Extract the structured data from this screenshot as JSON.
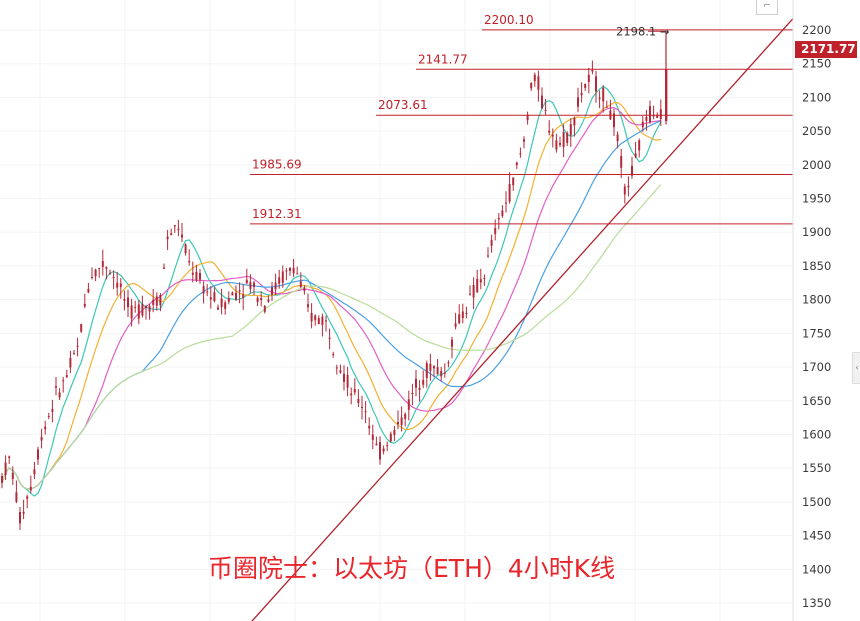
{
  "chart_data": {
    "type": "candlestick",
    "title": "币圈院士：以太坊（ETH）4小时K线",
    "y_axis": {
      "range": [
        1330,
        2230
      ],
      "ticks": [
        2200,
        2150,
        2100,
        2050,
        2000,
        1950,
        1900,
        1850,
        1800,
        1750,
        1700,
        1650,
        1600,
        1550,
        1500,
        1450,
        1400,
        1350
      ],
      "position": "right"
    },
    "current_price": {
      "value": 2171.77,
      "label": "2171.77",
      "color": "#c0202a"
    },
    "horizontal_levels": [
      {
        "value": 2200.1,
        "label": "2200.10",
        "color": "#c0202a"
      },
      {
        "value": 2141.77,
        "label": "2141.77",
        "color": "#c0202a"
      },
      {
        "value": 2073.61,
        "label": "2073.61",
        "color": "#c0202a"
      },
      {
        "value": 1985.69,
        "label": "1985.69",
        "color": "#c0202a"
      },
      {
        "value": 1912.31,
        "label": "1912.31",
        "color": "#c0202a"
      }
    ],
    "peak_annotation": {
      "value": 2198.1,
      "label": "2198.1 →"
    },
    "candle_color": "#b22a3a",
    "moving_average_colors": {
      "ma_fast": "#3cc8b4",
      "ma_mid": "#f2b134",
      "ma_slow": "#e35fc6",
      "ma_long": "#4aa0e6",
      "ma_longest": "#b9dc9a"
    },
    "trendline": {
      "color": "#b0242e",
      "start_y": 1330,
      "end_y": 2211
    },
    "grid": true
  },
  "ui": {
    "scale_button_label": "⌐",
    "side_handle_label": "‹"
  }
}
